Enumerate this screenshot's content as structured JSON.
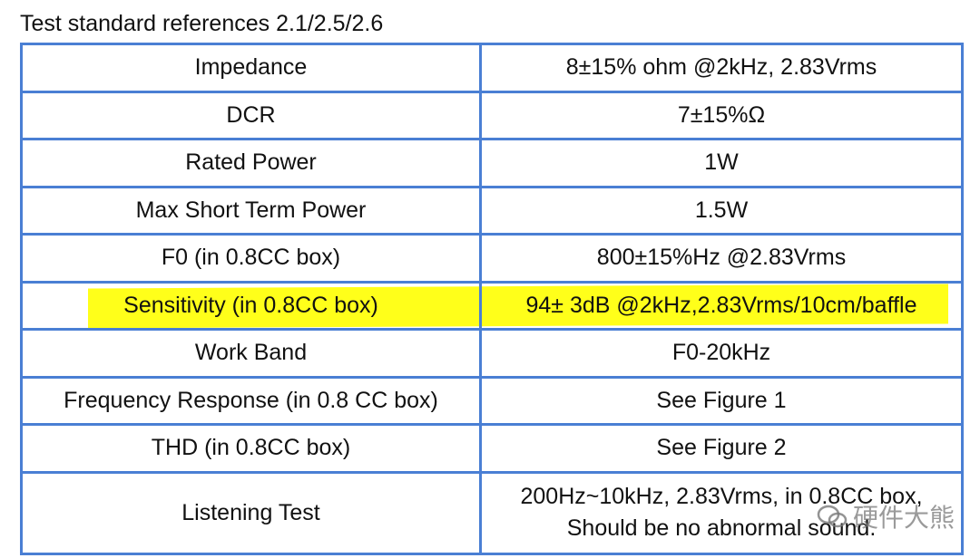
{
  "header": {
    "title": "Test standard references 2.1/2.5/2.6"
  },
  "table": {
    "rows": [
      [
        "Impedance",
        "8±15% ohm @2kHz, 2.83Vrms"
      ],
      [
        "DCR",
        "7±15%Ω"
      ],
      [
        "Rated Power",
        "1W"
      ],
      [
        "Max Short Term Power",
        "1.5W"
      ],
      [
        "F0 (in 0.8CC box)",
        "800±15%Hz @2.83Vrms"
      ],
      [
        "Sensitivity (in 0.8CC box)",
        "94± 3dB @2kHz,2.83Vrms/10cm/baffle"
      ],
      [
        "Work Band",
        "F0-20kHz"
      ],
      [
        "Frequency Response (in 0.8 CC box)",
        "See Figure 1"
      ],
      [
        "THD (in 0.8CC box)",
        "See Figure 2"
      ],
      [
        "Listening Test",
        [
          "200Hz~10kHz, 2.83Vrms, in 0.8CC box,",
          "Should be no abnormal sound."
        ]
      ]
    ]
  },
  "watermark": "硬件大熊"
}
